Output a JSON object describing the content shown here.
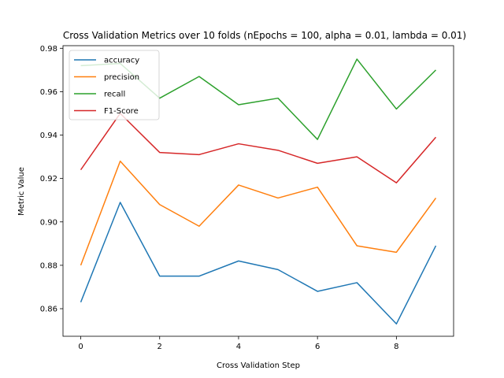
{
  "chart_data": {
    "type": "line",
    "title": "Cross Validation Metrics over 10 folds (nEpochs = 100, alpha = 0.01, lambda = 0.01)",
    "xlabel": "Cross Validation Step",
    "ylabel": "Metric Value",
    "xlim": [
      -0.45,
      9.45
    ],
    "ylim": [
      0.8473,
      0.9812
    ],
    "xticks": [
      0,
      2,
      4,
      6,
      8
    ],
    "yticks": [
      0.86,
      0.88,
      0.9,
      0.92,
      0.94,
      0.96,
      0.98
    ],
    "ytick_labels": [
      "0.86",
      "0.88",
      "0.90",
      "0.92",
      "0.94",
      "0.96",
      "0.98"
    ],
    "legend_position": "top-left",
    "grid": false,
    "x": [
      0,
      1,
      2,
      3,
      4,
      5,
      6,
      7,
      8,
      9
    ],
    "series": [
      {
        "name": "accuracy",
        "color": "#1f77b4",
        "values": [
          0.863,
          0.909,
          0.875,
          0.875,
          0.882,
          0.878,
          0.868,
          0.872,
          0.853,
          0.889
        ]
      },
      {
        "name": "precision",
        "color": "#ff7f0e",
        "values": [
          0.88,
          0.928,
          0.908,
          0.898,
          0.917,
          0.911,
          0.916,
          0.889,
          0.886,
          0.911
        ]
      },
      {
        "name": "recall",
        "color": "#2ca02c",
        "values": [
          0.972,
          0.973,
          0.957,
          0.967,
          0.954,
          0.957,
          0.938,
          0.975,
          0.952,
          0.97
        ]
      },
      {
        "name": "F1-Score",
        "color": "#d62728",
        "values": [
          0.924,
          0.95,
          0.932,
          0.931,
          0.936,
          0.933,
          0.927,
          0.93,
          0.918,
          0.939
        ]
      }
    ]
  }
}
